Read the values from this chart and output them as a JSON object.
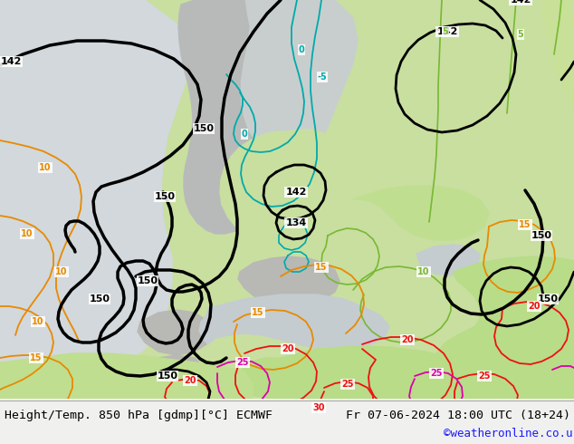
{
  "title_left": "Height/Temp. 850 hPa [gdmp][°C] ECMWF",
  "title_right": "Fr 07-06-2024 18:00 UTC (18+24)",
  "watermark": "©weatheronline.co.uk",
  "font_size_bottom": 9.5,
  "watermark_color": "#1a1aff",
  "bg_sea": "#d2d8dc",
  "bg_land_light": "#c8dfa0",
  "bg_land_mid": "#b8d888",
  "bg_gray": "#b4b4b4",
  "bg_white": "#e8e8e8",
  "c_black": "#000000",
  "c_cyan": "#00aaaa",
  "c_green": "#78b832",
  "c_orange": "#e88a00",
  "c_red": "#ee1111",
  "c_magenta": "#dd00aa",
  "bottom_bar": "#f0f0ee"
}
